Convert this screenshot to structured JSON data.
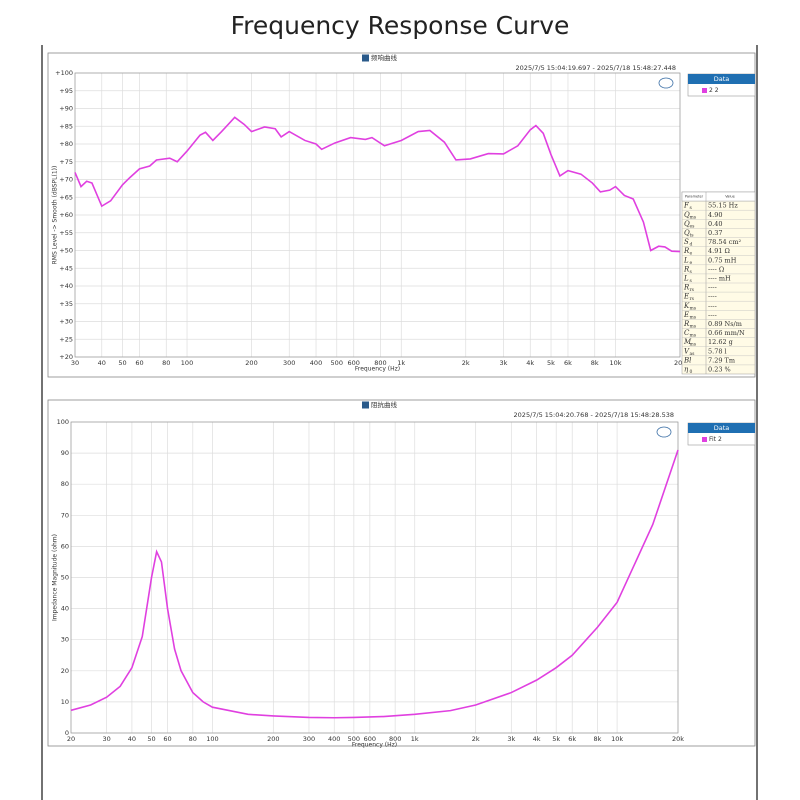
{
  "title": "Frequency Response Curve",
  "chart_data": [
    {
      "type": "line",
      "title": "频响曲线",
      "timestamp": "2025/7/5 15:04:19.697 - 2025/7/18 15:48:27.448",
      "x_label": "Frequency (Hz)",
      "y_label": "RMS Level -> Smooth (dBSPL(1))",
      "xscale": "log",
      "grid": true,
      "legend_title": "Data",
      "legend": "right",
      "x": [
        30,
        32,
        34,
        36,
        40,
        44,
        50,
        54,
        60,
        67,
        72,
        83,
        90,
        100,
        115,
        122,
        132,
        145,
        167,
        185,
        200,
        230,
        258,
        275,
        300,
        355,
        400,
        425,
        490,
        580,
        680,
        730,
        835,
        1000,
        1200,
        1360,
        1590,
        1800,
        2100,
        2550,
        3000,
        3500,
        4000,
        4250,
        4600,
        5000,
        5500,
        6000,
        6900,
        7800,
        8500,
        9400,
        10000,
        11000,
        12100,
        13500,
        14600,
        15900,
        17000,
        18300,
        20000
      ],
      "series": [
        {
          "name": "2 2",
          "color": "#e040e0",
          "values": [
            72,
            68,
            69.5,
            69,
            62.5,
            64,
            68.5,
            70.5,
            73,
            73.8,
            75.5,
            76,
            75,
            78,
            82.5,
            83.3,
            81,
            83.5,
            87.5,
            85.5,
            83.5,
            84.8,
            84.3,
            82,
            83.5,
            81,
            80,
            78.5,
            80.3,
            81.8,
            81.3,
            81.8,
            79.5,
            81,
            83.5,
            83.8,
            80.5,
            75.5,
            75.8,
            77.3,
            77.2,
            79.5,
            84,
            85.2,
            83,
            77,
            71,
            72.5,
            71.5,
            69,
            66.5,
            67,
            68,
            65.5,
            64.5,
            58,
            50,
            51.2,
            51,
            49.8,
            49.7
          ]
        }
      ],
      "xlim": [
        30,
        20000
      ],
      "xticks": [
        30,
        40,
        50,
        60,
        80,
        100,
        200,
        300,
        400,
        500,
        600,
        800,
        {
          "value": 1000,
          "label": "1k"
        },
        {
          "value": 2000,
          "label": "2k"
        },
        {
          "value": 3000,
          "label": "3k"
        },
        {
          "value": 4000,
          "label": "4k"
        },
        {
          "value": 5000,
          "label": "5k"
        },
        {
          "value": 6000,
          "label": "6k"
        },
        {
          "value": 8000,
          "label": "8k"
        },
        {
          "value": 10000,
          "label": "10k"
        },
        {
          "value": 20000,
          "label": "20k"
        }
      ],
      "ylim": [
        20,
        100
      ],
      "yticks": [
        {
          "value": 100,
          "label": "+100"
        },
        {
          "value": 95,
          "label": "+95"
        },
        {
          "value": 90,
          "label": "+90"
        },
        {
          "value": 85,
          "label": "+85"
        },
        {
          "value": 80,
          "label": "+80"
        },
        {
          "value": 75,
          "label": "+75"
        },
        {
          "value": 70,
          "label": "+70"
        },
        {
          "value": 65,
          "label": "+65"
        },
        {
          "value": 60,
          "label": "+60"
        },
        {
          "value": 55,
          "label": "+55"
        },
        {
          "value": 50,
          "label": "+50"
        },
        {
          "value": 45,
          "label": "+45"
        },
        {
          "value": 40,
          "label": "+40"
        },
        {
          "value": 35,
          "label": "+35"
        },
        {
          "value": 30,
          "label": "+30"
        },
        {
          "value": 25,
          "label": "+25"
        },
        {
          "value": 20,
          "label": "+20"
        }
      ]
    },
    {
      "type": "line",
      "title": "阻抗曲线",
      "timestamp": "2025/7/5 15:04:20.768 - 2025/7/18 15:48:28.538",
      "x_label": "Frequency (Hz)",
      "y_label": "Impedance Magnitude (ohm)",
      "xscale": "log",
      "grid": true,
      "legend_title": "Data",
      "legend": "right",
      "x": [
        20,
        25,
        30,
        35,
        40,
        45,
        50,
        53,
        56,
        60,
        65,
        70,
        80,
        90,
        100,
        150,
        200,
        300,
        400,
        500,
        700,
        1000,
        1500,
        2000,
        3000,
        4000,
        5000,
        6000,
        8000,
        10000,
        15000,
        20000
      ],
      "series": [
        {
          "name": "Fit 2",
          "color": "#e040e0",
          "values": [
            7.3,
            9,
            11.5,
            15,
            21,
            31,
            50,
            58.3,
            55,
            40,
            27,
            20,
            13,
            10,
            8.3,
            6,
            5.5,
            5.0,
            4.9,
            5.0,
            5.3,
            6.0,
            7.2,
            9,
            13,
            17,
            21,
            25,
            34,
            42,
            67,
            91
          ]
        }
      ],
      "xlim": [
        20,
        20000
      ],
      "xticks": [
        20,
        30,
        40,
        50,
        60,
        80,
        100,
        200,
        300,
        400,
        500,
        600,
        800,
        {
          "value": 1000,
          "label": "1k"
        },
        {
          "value": 2000,
          "label": "2k"
        },
        {
          "value": 3000,
          "label": "3k"
        },
        {
          "value": 4000,
          "label": "4k"
        },
        {
          "value": 5000,
          "label": "5k"
        },
        {
          "value": 6000,
          "label": "6k"
        },
        {
          "value": 8000,
          "label": "8k"
        },
        {
          "value": 10000,
          "label": "10k"
        },
        {
          "value": 20000,
          "label": "20k"
        }
      ],
      "ylim": [
        0,
        100
      ],
      "yticks": [
        100,
        90,
        80,
        70,
        60,
        50,
        40,
        30,
        20,
        10,
        0
      ]
    }
  ],
  "parameters": {
    "header": [
      "Parameter",
      "Value"
    ],
    "rows": [
      {
        "symbol": "F",
        "sub": "s",
        "value": "55.15 Hz"
      },
      {
        "symbol": "Q",
        "sub": "ms",
        "value": "4.90"
      },
      {
        "symbol": "Q",
        "sub": "es",
        "value": "0.40"
      },
      {
        "symbol": "Q",
        "sub": "ts",
        "value": "0.37"
      },
      {
        "symbol": "S",
        "sub": "d",
        "value": "78.54 cm²"
      },
      {
        "symbol": "R",
        "sub": "e",
        "value": "4.91 Ω"
      },
      {
        "symbol": "L",
        "sub": "e",
        "value": "0.75 mH"
      },
      {
        "symbol": "R",
        "sub": "s",
        "value": "---- Ω"
      },
      {
        "symbol": "L",
        "sub": "s",
        "value": "---- mH"
      },
      {
        "symbol": "R",
        "sub": "rs",
        "value": "----"
      },
      {
        "symbol": "E",
        "sub": "rs",
        "value": "----"
      },
      {
        "symbol": "K",
        "sub": "ms",
        "value": "----"
      },
      {
        "symbol": "E",
        "sub": "ms",
        "value": "----"
      },
      {
        "symbol": "R",
        "sub": "ms",
        "value": "0.89 Ns/m"
      },
      {
        "symbol": "C",
        "sub": "ms",
        "value": "0.66 mm/N"
      },
      {
        "symbol": "M",
        "sub": "ms",
        "value": "12.62 g"
      },
      {
        "symbol": "V",
        "sub": "as",
        "value": "5.78 l"
      },
      {
        "symbol": "Bl",
        "sub": "",
        "value": "7.29 Tm"
      },
      {
        "symbol": "η",
        "sub": "0",
        "value": "0.23 %"
      }
    ]
  }
}
